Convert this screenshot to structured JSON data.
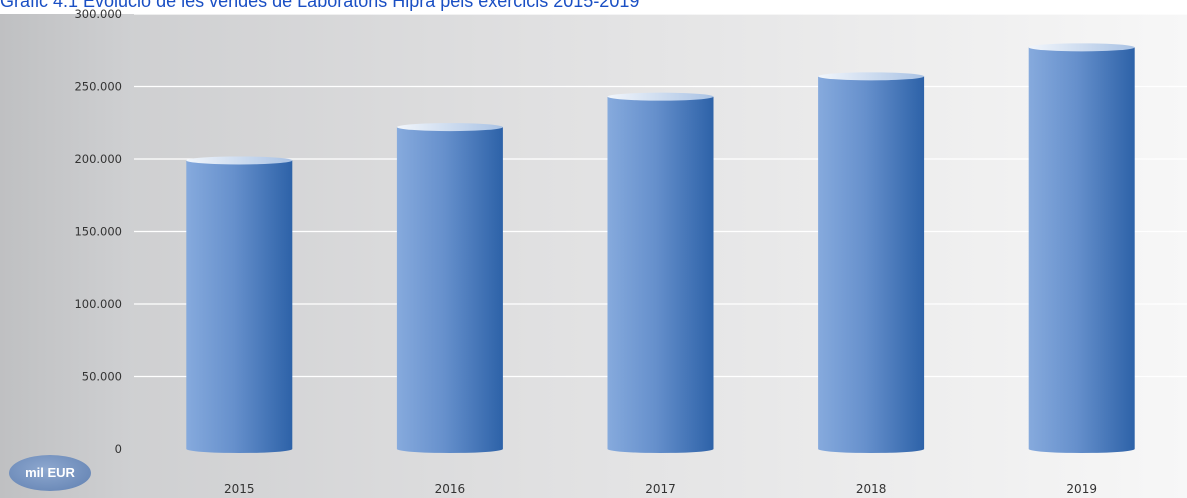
{
  "chart_data": {
    "type": "bar",
    "title": "Gràfic 4.1 Evolució de les vendes de Laboratoris Hipra pels exercicis 2015-2019",
    "unit_label": "mil EUR",
    "categories": [
      "2015",
      "2016",
      "2017",
      "2018",
      "2019"
    ],
    "values": [
      199000,
      222000,
      243000,
      257000,
      277000
    ],
    "ylim": [
      0,
      300000
    ],
    "yticks": [
      0,
      50000,
      100000,
      150000,
      200000,
      250000,
      300000
    ],
    "ytick_labels": [
      "0",
      "50.000",
      "100.000",
      "150.000",
      "200.000",
      "250.000",
      "300.000"
    ],
    "grid": true,
    "legend": "none",
    "colors": {
      "bar_light": "#7fa6dc",
      "bar_dark": "#2d62a8",
      "bar_top": "#dfe9f6",
      "grid": "#ffffff",
      "title": "#1a4fc4",
      "axis_text": "#333333"
    }
  }
}
